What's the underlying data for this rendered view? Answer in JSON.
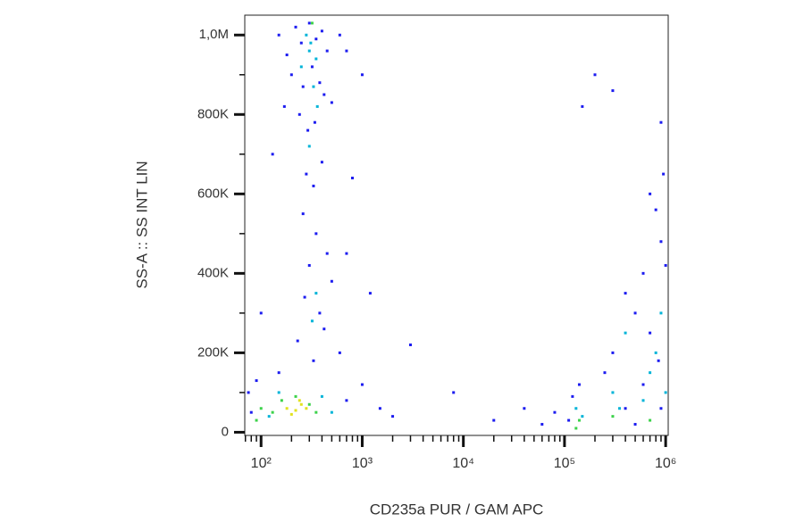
{
  "chart_data": {
    "type": "scatter",
    "xlabel": "CD235a PUR / GAM APC",
    "ylabel": "SS-A :: SS INT LIN",
    "xscale": "log",
    "xlim": [
      69,
      1060000
    ],
    "ylim": [
      -8000,
      1050000
    ],
    "xticks": [
      {
        "value": 100,
        "label": "10²"
      },
      {
        "value": 1000,
        "label": "10³"
      },
      {
        "value": 10000,
        "label": "10⁴"
      },
      {
        "value": 100000,
        "label": "10⁵"
      },
      {
        "value": 1000000,
        "label": "10⁶"
      }
    ],
    "xminorticks": [
      70,
      80,
      90,
      200,
      300,
      400,
      500,
      600,
      700,
      800,
      900,
      2000,
      3000,
      4000,
      5000,
      6000,
      7000,
      8000,
      9000,
      20000,
      30000,
      40000,
      50000,
      60000,
      70000,
      80000,
      90000,
      200000,
      300000,
      400000,
      500000,
      600000,
      700000,
      800000,
      900000
    ],
    "yticks": [
      0,
      {
        "value": 200000,
        "label": "200K"
      },
      {
        "value": 400000,
        "label": "400K"
      },
      {
        "value": 600000,
        "label": "600K"
      },
      {
        "value": 800000,
        "label": "800K"
      },
      {
        "value": 1000000,
        "label": "1,0M"
      }
    ],
    "yminorticks": [
      100000,
      300000,
      500000,
      700000,
      900000
    ],
    "series": [
      {
        "color": "#1c1cf0",
        "x": [
          150,
          180,
          220,
          250,
          300,
          350,
          400,
          450,
          200,
          260,
          320,
          380,
          420,
          170,
          240,
          290,
          340,
          500,
          600,
          700,
          130,
          280,
          330,
          400,
          800,
          260,
          350,
          450,
          300,
          500,
          270,
          380,
          420,
          230,
          600,
          330,
          150,
          1000,
          1500,
          2000,
          700,
          90,
          100,
          3000,
          8000,
          40000,
          20000,
          60000,
          80000,
          200000,
          300000,
          150000,
          120000,
          110000,
          140000,
          900000,
          800000,
          700000,
          950000,
          600000,
          500000,
          400000,
          700000,
          300000,
          250000,
          850000,
          600000,
          400000,
          900000,
          500000,
          1000000,
          900000,
          1000,
          700,
          1200,
          80,
          75
        ],
        "y": [
          1000000,
          950000,
          1020000,
          980000,
          1030000,
          990000,
          1010000,
          960000,
          900000,
          870000,
          920000,
          880000,
          850000,
          820000,
          800000,
          760000,
          780000,
          830000,
          1000000,
          960000,
          700000,
          650000,
          620000,
          680000,
          640000,
          550000,
          500000,
          450000,
          420000,
          380000,
          340000,
          300000,
          260000,
          230000,
          200000,
          180000,
          150000,
          120000,
          60000,
          40000,
          80000,
          130000,
          300000,
          220000,
          100000,
          60000,
          30000,
          20000,
          50000,
          900000,
          860000,
          820000,
          90000,
          30000,
          120000,
          480000,
          560000,
          600000,
          650000,
          400000,
          300000,
          350000,
          250000,
          200000,
          150000,
          180000,
          120000,
          60000,
          60000,
          20000,
          420000,
          780000,
          900000,
          450000,
          350000,
          50000,
          100000
        ]
      },
      {
        "color": "#00b4d8",
        "x": [
          300,
          350,
          280,
          330,
          250,
          310,
          360,
          300,
          350,
          320,
          120,
          400,
          500,
          150,
          130000,
          150000,
          300000,
          350000,
          600000,
          800000,
          900000,
          700000,
          400000,
          1000000
        ],
        "y": [
          960000,
          940000,
          1000000,
          870000,
          920000,
          980000,
          820000,
          720000,
          350000,
          280000,
          40000,
          90000,
          50000,
          100000,
          60000,
          40000,
          100000,
          60000,
          80000,
          200000,
          300000,
          150000,
          250000,
          100000
        ]
      },
      {
        "color": "#3cd24a",
        "x": [
          100,
          130,
          160,
          220,
          300,
          350,
          90,
          140000,
          130000,
          300000,
          700000,
          320
        ],
        "y": [
          60000,
          50000,
          80000,
          90000,
          70000,
          50000,
          30000,
          30000,
          10000,
          40000,
          30000,
          1030000
        ]
      },
      {
        "color": "#e2e21e",
        "x": [
          180,
          220,
          250,
          200,
          280,
          240
        ],
        "y": [
          60000,
          55000,
          70000,
          45000,
          60000,
          80000
        ]
      }
    ]
  }
}
